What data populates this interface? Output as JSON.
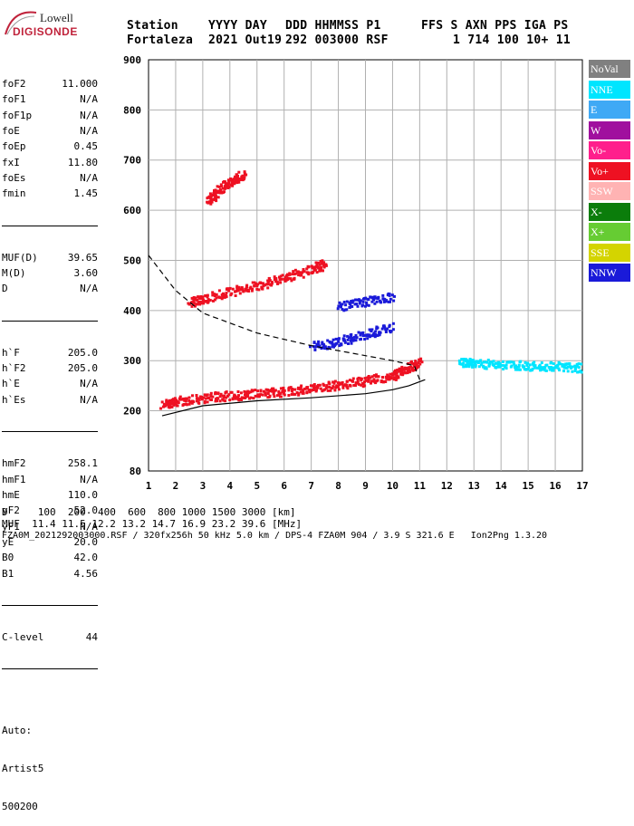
{
  "logo": {
    "line1": "Lowell",
    "line2": "DIGISONDE"
  },
  "header": {
    "labels": [
      "Station",
      "YYYY DAY",
      "DDD HHMMSS P1",
      "FFS S AXN PPS IGA PS"
    ],
    "values": [
      "Fortaleza",
      "2021 Out19",
      "292 003000 RSF",
      "1 714 100 10+ 11"
    ]
  },
  "params": {
    "group1": [
      {
        "name": "foF2",
        "value": "11.000"
      },
      {
        "name": "foF1",
        "value": "N/A"
      },
      {
        "name": "foF1p",
        "value": "N/A"
      },
      {
        "name": "foE",
        "value": "N/A"
      },
      {
        "name": "foEp",
        "value": "0.45"
      },
      {
        "name": "fxI",
        "value": "11.80"
      },
      {
        "name": "foEs",
        "value": "N/A"
      },
      {
        "name": "fmin",
        "value": "1.45"
      }
    ],
    "group2": [
      {
        "name": "MUF(D)",
        "value": "39.65"
      },
      {
        "name": "M(D)",
        "value": "3.60"
      },
      {
        "name": "D",
        "value": "N/A"
      }
    ],
    "group3": [
      {
        "name": "h`F",
        "value": "205.0"
      },
      {
        "name": "h`F2",
        "value": "205.0"
      },
      {
        "name": "h`E",
        "value": "N/A"
      },
      {
        "name": "h`Es",
        "value": "N/A"
      }
    ],
    "group4": [
      {
        "name": "hmF2",
        "value": "258.1"
      },
      {
        "name": "hmF1",
        "value": "N/A"
      },
      {
        "name": "hmE",
        "value": "110.0"
      },
      {
        "name": "yF2",
        "value": "52.0"
      },
      {
        "name": "yF1",
        "value": "N/A"
      },
      {
        "name": "yE",
        "value": "20.0"
      },
      {
        "name": "B0",
        "value": "42.0"
      },
      {
        "name": "B1",
        "value": "4.56"
      }
    ],
    "group5": [
      {
        "name": "C-level",
        "value": "44"
      }
    ],
    "auto": [
      "Auto:",
      "Artist5",
      "500200"
    ]
  },
  "legend": [
    {
      "label": "NoVal",
      "color": "#808080"
    },
    {
      "label": "NNE",
      "color": "#00e5ff"
    },
    {
      "label": "E",
      "color": "#3fa9f5"
    },
    {
      "label": "W",
      "color": "#a0109e"
    },
    {
      "label": "Vo-",
      "color": "#ff1f8c"
    },
    {
      "label": "Vo+",
      "color": "#ee1122"
    },
    {
      "label": "SSW",
      "color": "#ffb3b3"
    },
    {
      "label": "X-",
      "color": "#0b7d0b"
    },
    {
      "label": "X+",
      "color": "#66cc33"
    },
    {
      "label": "SSE",
      "color": "#d4d400"
    },
    {
      "label": "NNW",
      "color": "#1a1ad9"
    }
  ],
  "footer": {
    "line1": "D     100  200  400  600  800 1000 1500 3000 [km]",
    "line2": "MUF  11.4 11.5 12.2 13.2 14.7 16.9 23.2 39.6 [MHz]",
    "line3": "FZA0M_2021292003000.RSF / 320fx256h 50 kHz 5.0 km / DPS-4 FZA0M 904 / 3.9 S 321.6 E   Ion2Png 1.3.20"
  },
  "chart_data": {
    "type": "scatter",
    "xlim": [
      1,
      17
    ],
    "ylim": [
      80,
      900
    ],
    "xticks": [
      1,
      2,
      3,
      4,
      5,
      6,
      7,
      8,
      9,
      10,
      11,
      12,
      13,
      14,
      15,
      16,
      17
    ],
    "yticks": [
      80,
      200,
      300,
      400,
      500,
      600,
      700,
      800,
      900
    ],
    "grid": true,
    "legend_position": "right",
    "traces": [
      {
        "color": "#ee1122",
        "x": [
          1.5,
          2,
          3,
          4,
          5,
          6,
          7,
          8,
          9,
          10,
          10.5,
          11
        ],
        "y": [
          215,
          220,
          228,
          232,
          236,
          240,
          246,
          254,
          262,
          272,
          285,
          300
        ]
      },
      {
        "color": "#ee1122",
        "x": [
          2.5,
          3,
          4,
          5,
          6,
          7,
          7.5
        ],
        "y": [
          418,
          425,
          440,
          452,
          468,
          485,
          495
        ]
      },
      {
        "color": "#ee1122",
        "x": [
          3.2,
          3.5,
          4,
          4.5
        ],
        "y": [
          620,
          640,
          660,
          675
        ]
      },
      {
        "color": "#1a1ad9",
        "x": [
          7,
          8,
          9,
          10
        ],
        "y": [
          330,
          340,
          355,
          370
        ]
      },
      {
        "color": "#1a1ad9",
        "x": [
          8,
          9,
          10
        ],
        "y": [
          410,
          420,
          430
        ]
      },
      {
        "color": "#00e5ff",
        "x": [
          12.5,
          13,
          14,
          15,
          16,
          17
        ],
        "y": [
          300,
          296,
          295,
          292,
          290,
          288
        ]
      }
    ],
    "profile_curve": {
      "x": [
        1.5,
        3,
        5,
        7,
        9,
        10,
        10.6,
        11,
        11.2
      ],
      "y": [
        190,
        210,
        220,
        226,
        234,
        242,
        250,
        258,
        262
      ]
    },
    "dashed_curve": {
      "x": [
        1,
        2,
        3,
        5,
        7,
        9,
        10,
        10.8,
        11
      ],
      "y": [
        510,
        440,
        395,
        355,
        330,
        310,
        300,
        290,
        262
      ]
    }
  }
}
